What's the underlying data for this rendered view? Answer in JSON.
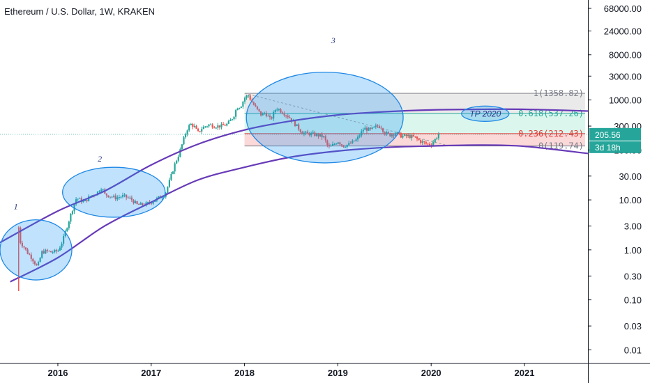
{
  "chart_data": {
    "type": "candlestick",
    "title": "Ethereum / U.S. Dollar, 1W, KRAKEN",
    "y_scale": "log",
    "ylim": [
      0.0055,
      100000
    ],
    "xlim": [
      2015.38,
      2021.68
    ],
    "y_ticks": [
      "68000.00",
      "24000.00",
      "8000.00",
      "3000.00",
      "1000.00",
      "300.00",
      "100.00",
      "30.00",
      "10.00",
      "3.00",
      "1.00",
      "0.30",
      "0.10",
      "0.03",
      "0.01"
    ],
    "y_tick_values": [
      68000,
      24000,
      8000,
      3000,
      1000,
      300,
      100,
      30,
      10,
      3,
      1,
      0.3,
      0.1,
      0.03,
      0.01
    ],
    "x_ticks": [
      "2016",
      "2017",
      "2018",
      "2019",
      "2020",
      "2021"
    ],
    "x_tick_values": [
      2016,
      2017,
      2018,
      2019,
      2020,
      2021
    ],
    "price_series": {
      "x": [
        2015.58,
        2015.6,
        2015.63,
        2015.67,
        2015.72,
        2015.78,
        2015.83,
        2015.88,
        2015.93,
        2016.0,
        2016.05,
        2016.1,
        2016.15,
        2016.2,
        2016.28,
        2016.35,
        2016.42,
        2016.47,
        2016.5,
        2016.56,
        2016.62,
        2016.7,
        2016.78,
        2016.85,
        2016.92,
        2017.0,
        2017.08,
        2017.15,
        2017.2,
        2017.25,
        2017.3,
        2017.38,
        2017.42,
        2017.46,
        2017.5,
        2017.55,
        2017.62,
        2017.68,
        2017.75,
        2017.82,
        2017.88,
        2017.92,
        2017.96,
        2018.0,
        2018.04,
        2018.08,
        2018.12,
        2018.18,
        2018.22,
        2018.28,
        2018.34,
        2018.42,
        2018.48,
        2018.56,
        2018.62,
        2018.7,
        2018.78,
        2018.85,
        2018.9,
        2018.96,
        2019.0,
        2019.06,
        2019.12,
        2019.2,
        2019.28,
        2019.35,
        2019.42,
        2019.46,
        2019.5,
        2019.56,
        2019.62,
        2019.68,
        2019.75,
        2019.82,
        2019.88,
        2019.92,
        2019.96,
        2020.0,
        2020.04,
        2020.08
      ],
      "close": [
        2.8,
        1.4,
        1.2,
        0.9,
        0.7,
        0.45,
        0.9,
        0.95,
        0.9,
        0.95,
        1.5,
        3,
        6,
        11,
        9,
        12,
        14,
        18,
        13,
        12,
        11,
        12,
        10.5,
        8,
        8,
        9,
        11,
        13,
        25,
        50,
        85,
        250,
        330,
        300,
        220,
        280,
        320,
        300,
        300,
        330,
        460,
        720,
        750,
        1100,
        1250,
        900,
        700,
        500,
        560,
        400,
        700,
        550,
        450,
        300,
        220,
        210,
        200,
        180,
        110,
        130,
        150,
        120,
        130,
        160,
        270,
        250,
        300,
        300,
        220,
        200,
        220,
        190,
        190,
        180,
        150,
        140,
        130,
        130,
        160,
        205.56
      ]
    },
    "fibonacci": {
      "levels": [
        {
          "label": "1(1358.82)",
          "ratio": 1,
          "price": 1358.82
        },
        {
          "label": "0.618(537.26)",
          "ratio": 0.618,
          "price": 537.26
        },
        {
          "label": "0.236(212.43)",
          "ratio": 0.236,
          "price": 212.43
        },
        {
          "label": "0(119.74)",
          "ratio": 0,
          "price": 119.74
        }
      ],
      "x_start": 2018.0,
      "x_end": 2021.68
    },
    "channel": {
      "upper": {
        "x": [
          2015.38,
          2016.0,
          2016.5,
          2017.0,
          2017.5,
          2018.0,
          2018.5,
          2019.0,
          2019.5,
          2020.0,
          2020.5,
          2021.0,
          2021.68
        ],
        "y": [
          1.4,
          6,
          15,
          50,
          130,
          250,
          380,
          500,
          580,
          630,
          650,
          650,
          600
        ]
      },
      "lower": {
        "x": [
          2015.49,
          2016.0,
          2016.5,
          2017.0,
          2017.5,
          2018.0,
          2018.5,
          2019.0,
          2019.5,
          2020.0,
          2020.5,
          2021.0,
          2021.68
        ],
        "y": [
          0.23,
          0.7,
          3,
          9,
          25,
          45,
          72,
          95,
          112,
          120,
          125,
          118,
          85
        ]
      }
    },
    "annotations": [
      {
        "label": "1",
        "x": 2015.55,
        "y": 1.4
      },
      {
        "label": "2",
        "x": 2016.45,
        "y": 10
      },
      {
        "label": "3",
        "x": 2018.95,
        "y": 400
      }
    ],
    "target": {
      "label": "TP 2020",
      "x": 2020.58,
      "price": 530
    },
    "current_price": "205.56",
    "countdown": "3d 18h"
  }
}
